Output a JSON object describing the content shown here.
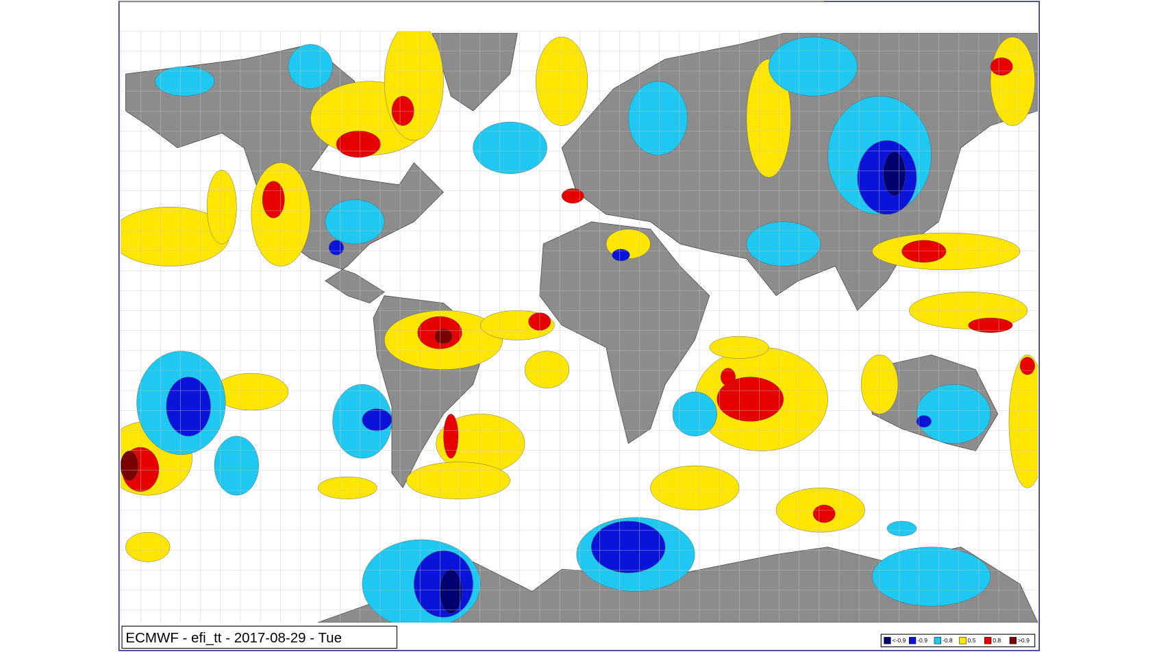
{
  "title": "ECMWF - efi_tt - 2017-08-29 - Tue",
  "legend": [
    {
      "label": "<-0.9",
      "color": "#000070"
    },
    {
      "label": "-0.9",
      "color": "#0a14d8"
    },
    {
      "label": "-0.8",
      "color": "#1ec8f0"
    },
    {
      "label": "0.5",
      "color": "#ffe600"
    },
    {
      "label": "0.8",
      "color": "#e60000"
    },
    {
      "label": ">0.9",
      "color": "#7a0000"
    }
  ]
}
